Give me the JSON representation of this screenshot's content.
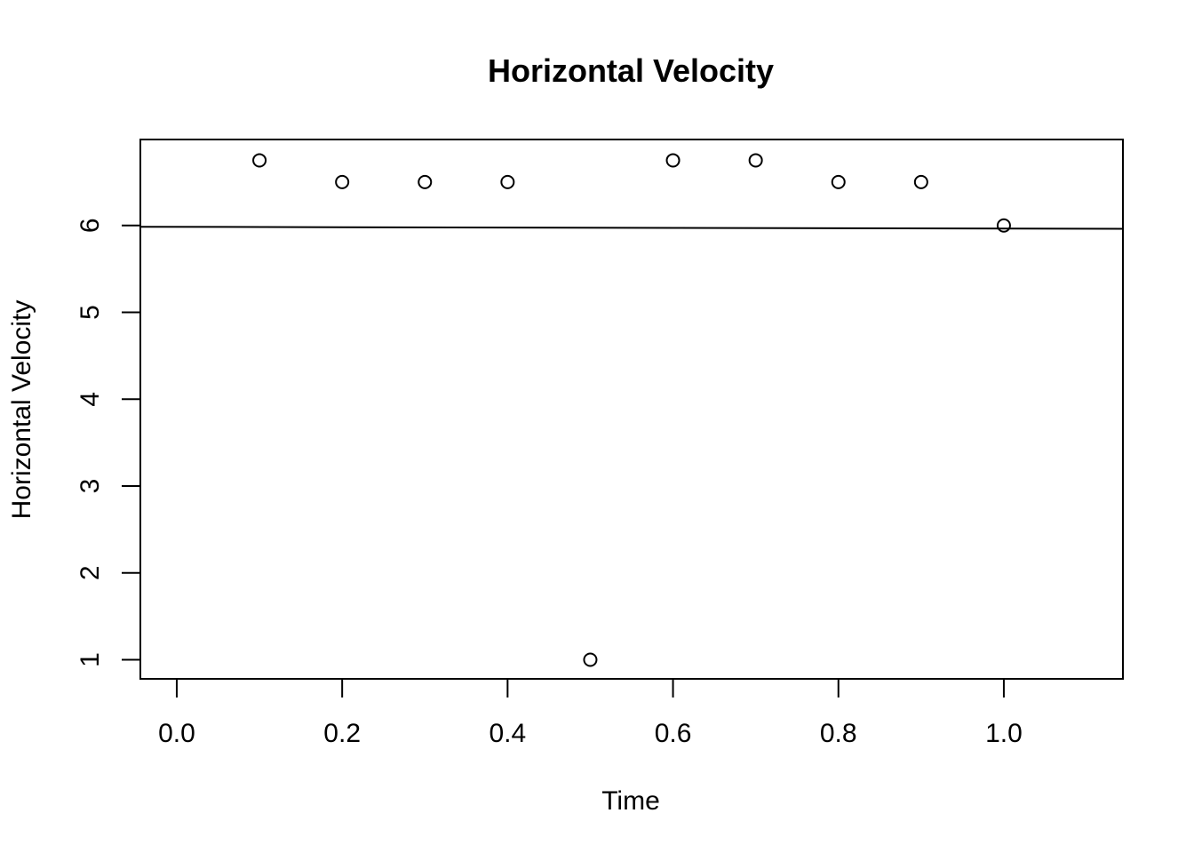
{
  "chart_data": {
    "type": "scatter",
    "title": "Horizontal Velocity",
    "xlabel": "Time",
    "ylabel": "Horizontal Velocity",
    "x_ticks": [
      "0.0",
      "0.2",
      "0.4",
      "0.6",
      "0.8",
      "1.0"
    ],
    "y_ticks": [
      "1",
      "2",
      "3",
      "4",
      "5",
      "6"
    ],
    "xlim": [
      -0.044,
      1.144
    ],
    "ylim": [
      0.78,
      6.99
    ],
    "grid": false,
    "series": [
      {
        "points": [
          {
            "x": 0.1,
            "y": 6.75
          },
          {
            "x": 0.2,
            "y": 6.5
          },
          {
            "x": 0.3,
            "y": 6.5
          },
          {
            "x": 0.4,
            "y": 6.5
          },
          {
            "x": 0.5,
            "y": 1.0
          },
          {
            "x": 0.6,
            "y": 6.75
          },
          {
            "x": 0.7,
            "y": 6.75
          },
          {
            "x": 0.8,
            "y": 6.5
          },
          {
            "x": 0.9,
            "y": 6.5
          },
          {
            "x": 1.0,
            "y": 6.0
          }
        ]
      }
    ],
    "fit_line": {
      "x": [
        -0.044,
        1.144
      ],
      "y": [
        5.985,
        5.962
      ]
    }
  }
}
